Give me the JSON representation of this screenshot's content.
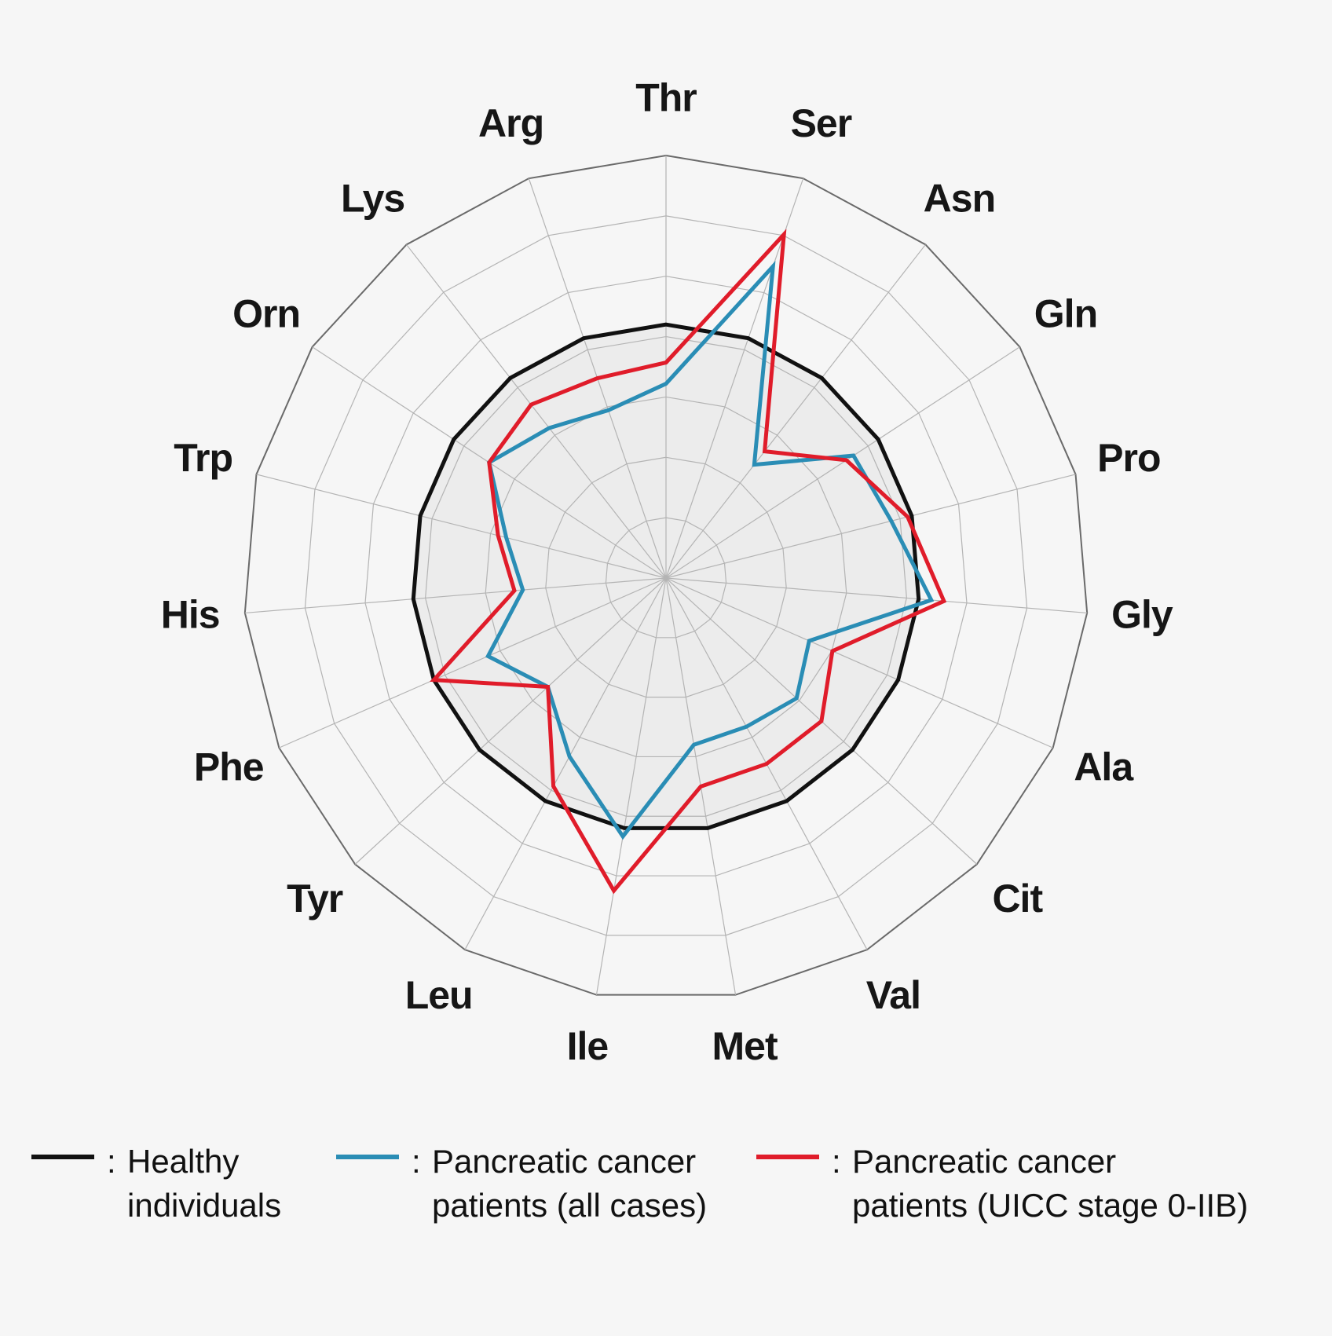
{
  "chart_data": {
    "type": "radar",
    "axes": [
      "Thr",
      "Ser",
      "Asn",
      "Gln",
      "Pro",
      "Gly",
      "Ala",
      "Cit",
      "Val",
      "Met",
      "Ile",
      "Leu",
      "Tyr",
      "Phe",
      "His",
      "Trp",
      "Orn",
      "Lys",
      "Arg"
    ],
    "rlim": [
      0,
      1
    ],
    "ring_count": 7,
    "grid": true,
    "legend_position": "bottom",
    "series": [
      {
        "name": "Healthy individuals",
        "color": "#111111",
        "values": [
          0.6,
          0.6,
          0.6,
          0.6,
          0.6,
          0.6,
          0.6,
          0.6,
          0.6,
          0.6,
          0.6,
          0.6,
          0.6,
          0.6,
          0.6,
          0.6,
          0.6,
          0.6,
          0.6
        ]
      },
      {
        "name": "Pancreatic cancer patients (all cases)",
        "color": "#2a8db5",
        "values": [
          0.46,
          0.78,
          0.34,
          0.53,
          0.55,
          0.63,
          0.37,
          0.42,
          0.4,
          0.4,
          0.62,
          0.48,
          0.38,
          0.46,
          0.34,
          0.39,
          0.5,
          0.45,
          0.42
        ]
      },
      {
        "name": "Pancreatic cancer patients (UICC stage 0-IIB)",
        "color": "#e01c2a",
        "values": [
          0.51,
          0.86,
          0.38,
          0.51,
          0.59,
          0.66,
          0.43,
          0.5,
          0.5,
          0.5,
          0.75,
          0.56,
          0.38,
          0.6,
          0.36,
          0.41,
          0.5,
          0.52,
          0.5
        ]
      }
    ]
  },
  "legend": [
    {
      "marker": ":",
      "line1": "Healthy",
      "line2": "individuals",
      "color": "#111111"
    },
    {
      "marker": ":",
      "line1": "Pancreatic cancer",
      "line2": "patients (all cases)",
      "color": "#2a8db5"
    },
    {
      "marker": ":",
      "line1": "Pancreatic cancer",
      "line2": "patients (UICC stage 0-IIB)",
      "color": "#e01c2a"
    }
  ]
}
